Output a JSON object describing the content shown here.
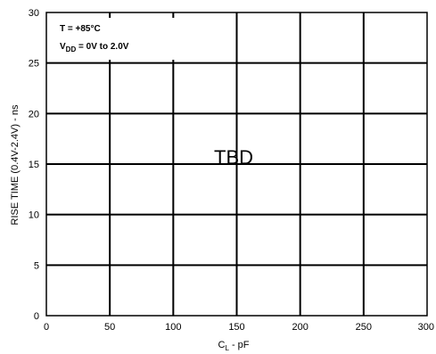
{
  "chart_data": {
    "type": "line",
    "title": "",
    "xlabel": "C",
    "xlabel_sub": "L",
    "xlabel_suffix": " - pF",
    "ylabel": "RISE TIME (0.4V-2.4V) - ns",
    "xlim": [
      0,
      300
    ],
    "ylim": [
      0,
      30
    ],
    "x_ticks": [
      0,
      50,
      100,
      150,
      200,
      250,
      300
    ],
    "x_tick_labels": [
      "0",
      "50",
      "100",
      "150",
      "200",
      "250",
      "300"
    ],
    "y_ticks": [
      0,
      5,
      10,
      15,
      20,
      25,
      30
    ],
    "y_tick_labels": [
      "0",
      "5",
      "10",
      "15",
      "20",
      "25",
      "30"
    ],
    "grid": true,
    "series": [],
    "annotations": {
      "temp_line": "T = +85°C",
      "vdd_main": "V",
      "vdd_sub": "DD",
      "vdd_rest": " = 0V to 2.0V",
      "center": "TBD"
    }
  }
}
